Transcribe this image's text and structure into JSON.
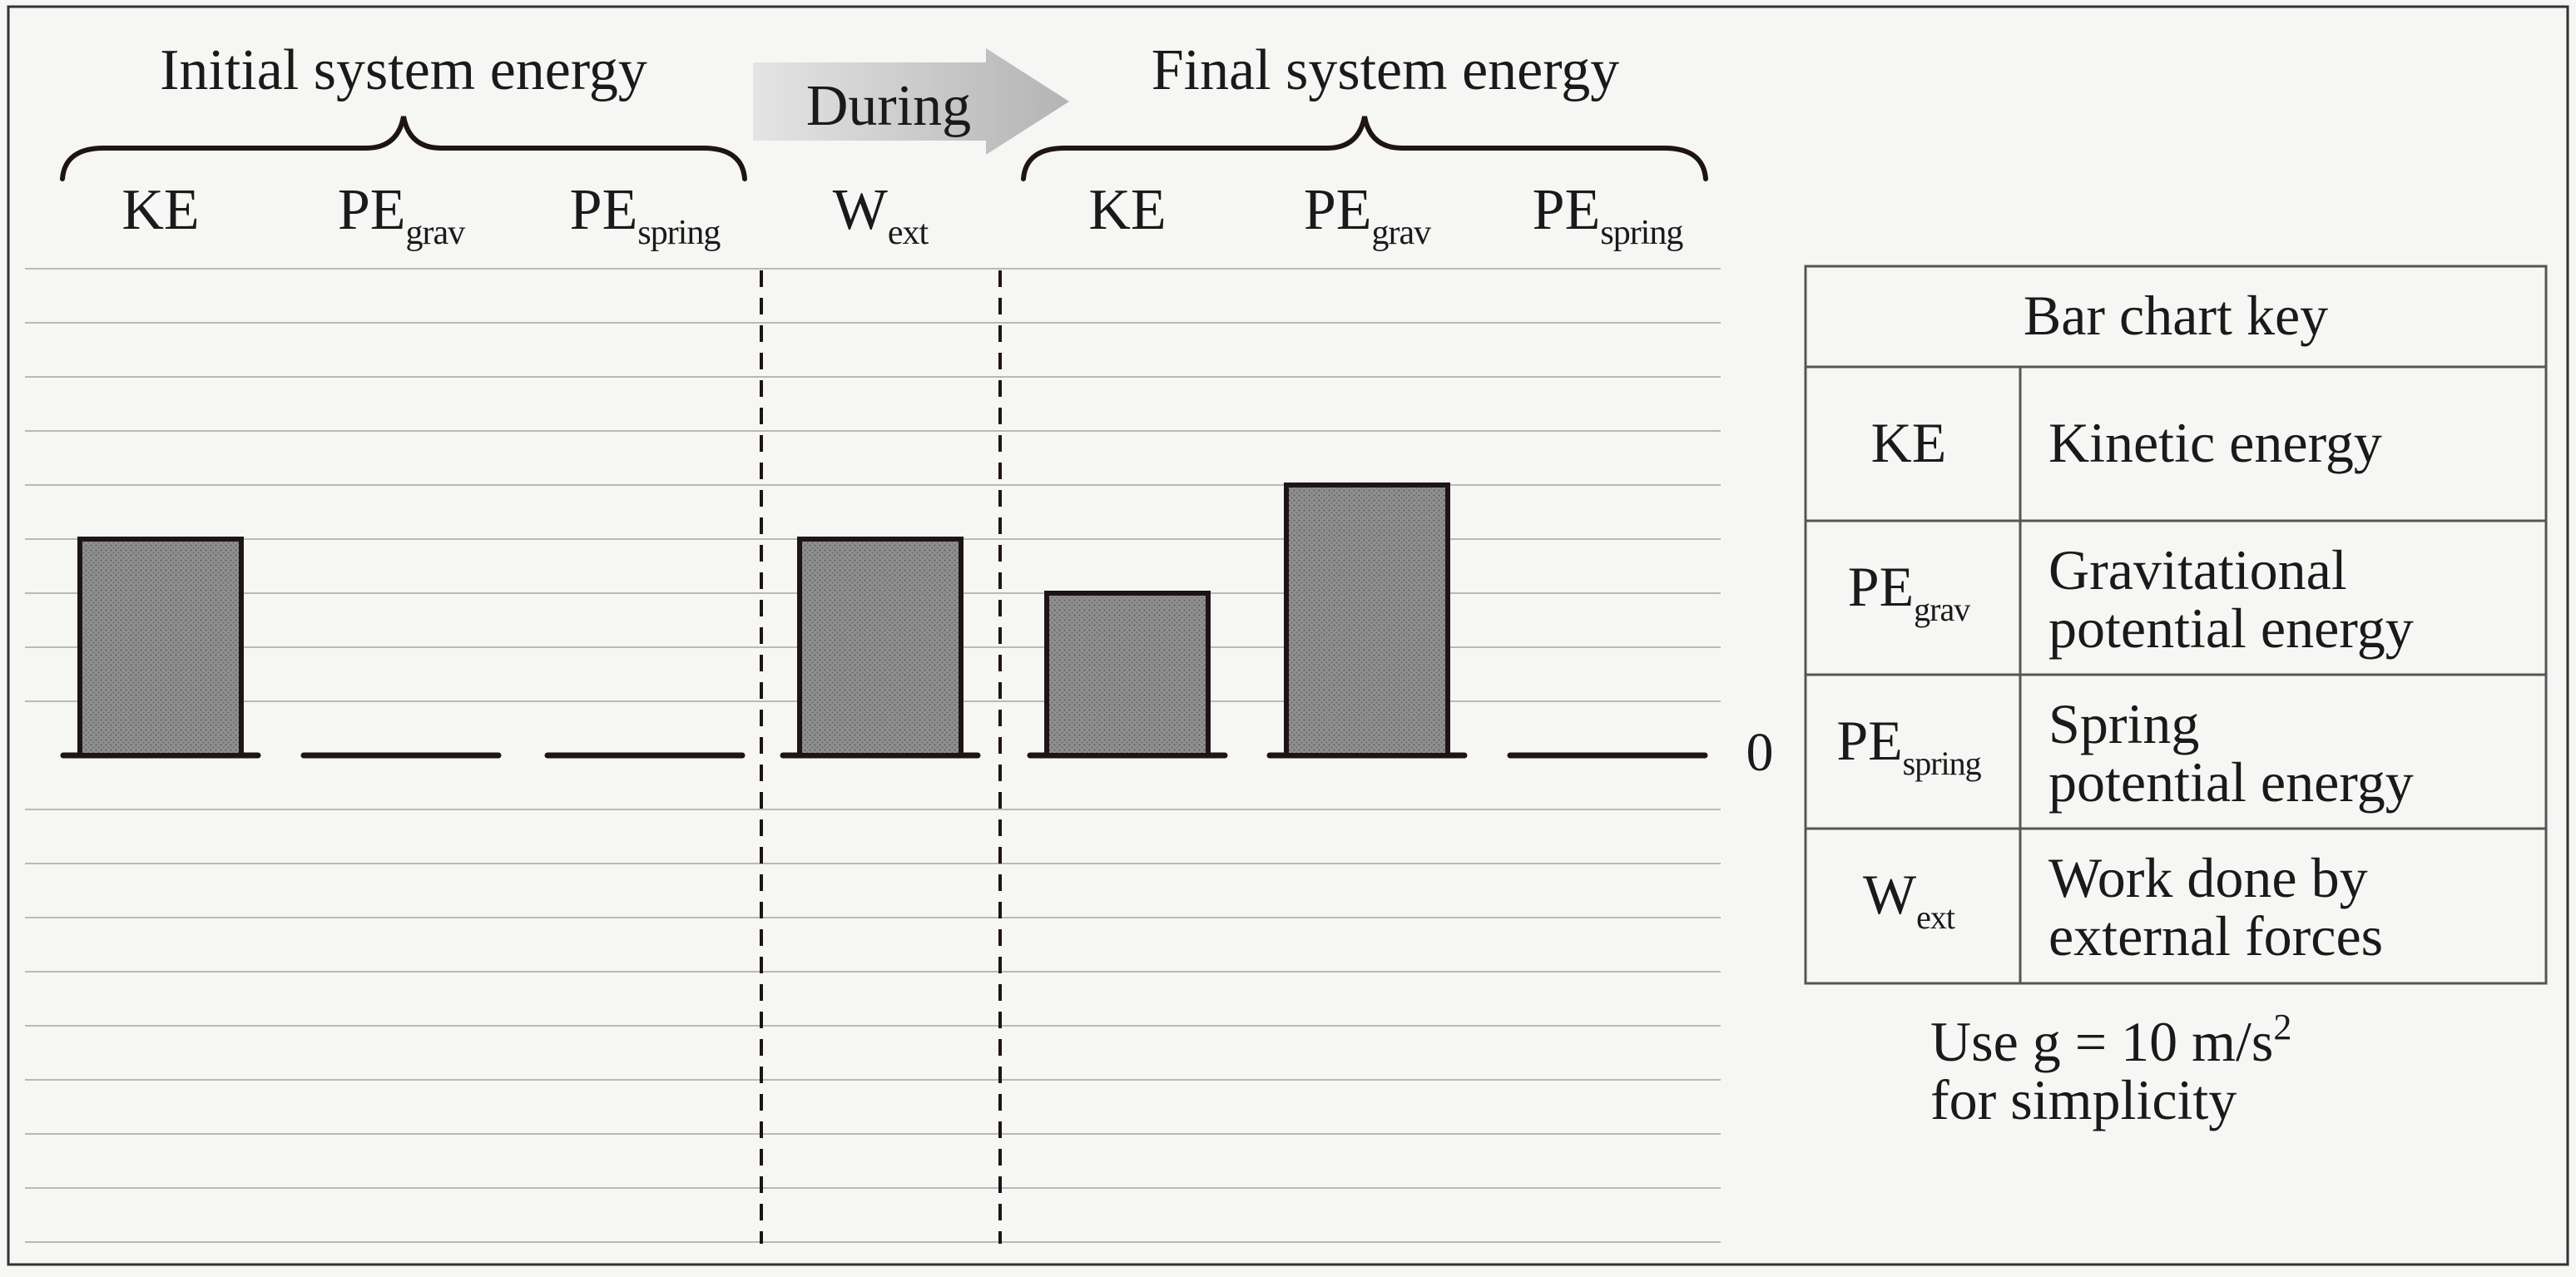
{
  "headers": {
    "initial": "Initial system energy",
    "during": "During",
    "final": "Final system energy"
  },
  "columns": [
    {
      "main": "KE",
      "sub": ""
    },
    {
      "main": "PE",
      "sub": "grav"
    },
    {
      "main": "PE",
      "sub": "spring"
    },
    {
      "main": "W",
      "sub": "ext"
    },
    {
      "main": "KE",
      "sub": ""
    },
    {
      "main": "PE",
      "sub": "grav"
    },
    {
      "main": "PE",
      "sub": "spring"
    }
  ],
  "zero_label": "0",
  "chart_data": {
    "type": "bar",
    "categories": [
      "KE (initial)",
      "PE grav (initial)",
      "PE spring (initial)",
      "W ext",
      "KE (final)",
      "PE grav (final)",
      "PE spring (final)"
    ],
    "values": [
      4,
      0,
      0,
      4,
      3,
      5,
      0
    ],
    "ylim": [
      -9,
      9
    ],
    "grid": true,
    "units": "grid lines"
  },
  "key": {
    "title": "Bar chart key",
    "rows": [
      {
        "sym": "KE",
        "sub": "",
        "line1": "Kinetic energy",
        "line2": ""
      },
      {
        "sym": "PE",
        "sub": "grav",
        "line1": "Gravitational",
        "line2": "potential energy"
      },
      {
        "sym": "PE",
        "sub": "spring",
        "line1": "Spring",
        "line2": "potential energy"
      },
      {
        "sym": "W",
        "sub": "ext",
        "line1": "Work done by",
        "line2": "external forces"
      }
    ]
  },
  "note": {
    "line1": "Use g = 10 m/s",
    "sup": "2",
    "line2": "for simplicity"
  },
  "colors": {
    "bar_fill": "#8a8a8a",
    "bar_stroke": "#1e1416",
    "grid": "#b9b9b9",
    "background": "#f6f6f4"
  }
}
